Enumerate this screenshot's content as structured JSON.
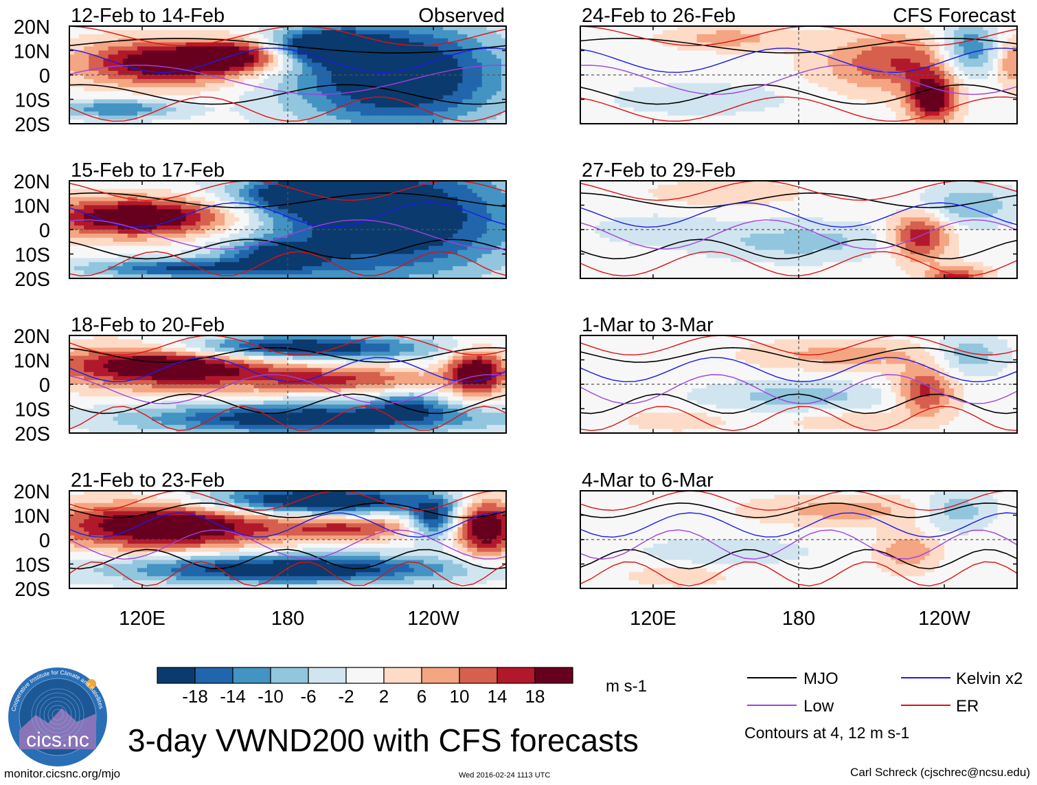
{
  "chart_data": {
    "type": "heatmap",
    "title": "3-day VWND200 with CFS forecasts",
    "variable": "VWND200",
    "units": "m s-1",
    "columns": [
      {
        "label": "Observed",
        "panels": [
          "12-Feb to 14-Feb",
          "15-Feb to 17-Feb",
          "18-Feb to 20-Feb",
          "21-Feb to 23-Feb"
        ]
      },
      {
        "label": "CFS Forecast",
        "panels": [
          "24-Feb to 26-Feb",
          "27-Feb to 29-Feb",
          "1-Mar to 3-Mar",
          "4-Mar to 6-Mar"
        ]
      }
    ],
    "lat_ticks": [
      "20N",
      "10N",
      "0",
      "10S",
      "20S"
    ],
    "lat_range": [
      -20,
      20
    ],
    "lon_range": [
      90,
      270
    ],
    "lon_ticks": [
      {
        "lon": 120,
        "label": "120E"
      },
      {
        "lon": 180,
        "label": "180"
      },
      {
        "lon": 240,
        "label": "120W"
      }
    ],
    "colorbar": {
      "levels": [
        "-18",
        "-14",
        "-10",
        "-6",
        "-2",
        "2",
        "6",
        "10",
        "14",
        "18"
      ],
      "colors": [
        "#0b3a6e",
        "#2166ac",
        "#4393c3",
        "#92c5de",
        "#d1e5f0",
        "#f7f7f7",
        "#fddbc7",
        "#f4a582",
        "#d6604d",
        "#b2182b",
        "#67001f"
      ]
    },
    "contours": {
      "legend": [
        {
          "name": "MJO",
          "color": "#000000"
        },
        {
          "name": "Kelvin x2",
          "color": "#1a1aee"
        },
        {
          "name": "Low",
          "color": "#a040e0"
        },
        {
          "name": "ER",
          "color": "#e01010"
        }
      ],
      "note": "Contours at 4, 12 m s-1"
    }
  },
  "footer": {
    "left": "monitor.cicsnc.org/mjo",
    "center": "Wed 2016-02-24 1113 UTC",
    "right": "Carl Schreck (cjschrec@ncsu.edu)"
  },
  "logo": {
    "text": "cicsnc",
    "ring_text": "Cooperative Institute for Climate and Satellites"
  }
}
